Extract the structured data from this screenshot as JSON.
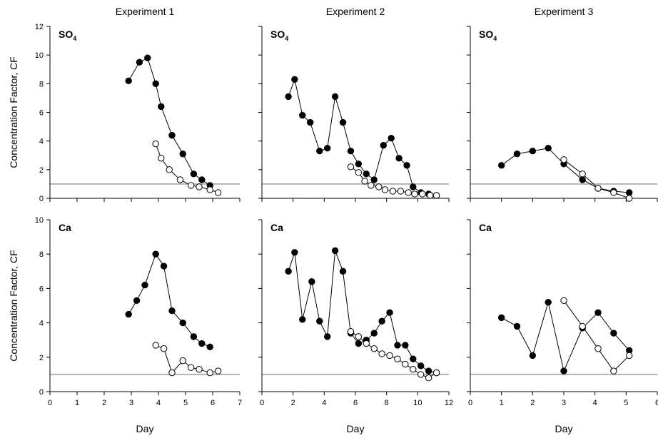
{
  "chart_data": [
    {
      "type": "line",
      "row": 0,
      "col": 0,
      "column_title": "Experiment 1",
      "label": "SO",
      "label_subscript": "4",
      "xlabel": "",
      "ylabel": "Concentration Factor, CF",
      "xlim": [
        0,
        7
      ],
      "ylim": [
        0,
        12
      ],
      "xticks": [
        0,
        1,
        2,
        3,
        4,
        5,
        6,
        7
      ],
      "yticks": [
        0,
        2,
        4,
        6,
        8,
        10,
        12
      ],
      "reference_line_y": 1,
      "series": [
        {
          "marker": "filled",
          "x": [
            2.9,
            3.3,
            3.6,
            3.9,
            4.1,
            4.5,
            4.9,
            5.3,
            5.6,
            5.9
          ],
          "y": [
            8.2,
            9.5,
            9.8,
            8.0,
            6.4,
            4.4,
            3.1,
            1.7,
            1.3,
            0.9
          ]
        },
        {
          "marker": "open",
          "x": [
            3.9,
            4.1,
            4.4,
            4.8,
            5.2,
            5.5,
            5.9,
            6.2
          ],
          "y": [
            3.8,
            2.8,
            2.0,
            1.3,
            0.9,
            0.8,
            0.6,
            0.4
          ]
        }
      ]
    },
    {
      "type": "line",
      "row": 0,
      "col": 1,
      "column_title": "Experiment 2",
      "label": "SO",
      "label_subscript": "4",
      "xlabel": "",
      "ylabel": "",
      "xlim": [
        0,
        12
      ],
      "ylim": [
        0,
        12
      ],
      "xticks": [
        0,
        2,
        4,
        6,
        8,
        10,
        12
      ],
      "yticks": [
        0,
        2,
        4,
        6,
        8,
        10,
        12
      ],
      "reference_line_y": 1,
      "series": [
        {
          "marker": "filled",
          "x": [
            1.7,
            2.1,
            2.6,
            3.1,
            3.7,
            4.2,
            4.7,
            5.2,
            5.7,
            6.2,
            6.7,
            7.2,
            7.8,
            8.3,
            8.8,
            9.3,
            9.7,
            10.2,
            10.7,
            11.2
          ],
          "y": [
            7.1,
            8.3,
            5.8,
            5.3,
            3.3,
            3.5,
            7.1,
            5.3,
            3.3,
            2.4,
            1.7,
            1.3,
            3.7,
            4.2,
            2.8,
            2.3,
            0.8,
            0.4,
            0.3,
            0.2
          ]
        },
        {
          "marker": "open",
          "x": [
            5.7,
            6.2,
            6.6,
            7.0,
            7.5,
            7.9,
            8.4,
            8.9,
            9.4,
            9.8,
            10.3,
            10.8,
            11.2
          ],
          "y": [
            2.2,
            1.8,
            1.2,
            0.9,
            0.8,
            0.6,
            0.5,
            0.5,
            0.4,
            0.3,
            0.3,
            0.2,
            0.2
          ]
        }
      ]
    },
    {
      "type": "line",
      "row": 0,
      "col": 2,
      "column_title": "Experiment 3",
      "label": "SO",
      "label_subscript": "4",
      "xlabel": "",
      "ylabel": "",
      "xlim": [
        0,
        6
      ],
      "ylim": [
        0,
        12
      ],
      "xticks": [
        0,
        1,
        2,
        3,
        4,
        5,
        6
      ],
      "yticks": [
        0,
        2,
        4,
        6,
        8,
        10,
        12
      ],
      "reference_line_y": 1,
      "series": [
        {
          "marker": "filled",
          "x": [
            1.0,
            1.5,
            2.0,
            2.5,
            3.0,
            3.6,
            4.1,
            4.6,
            5.1
          ],
          "y": [
            2.3,
            3.1,
            3.3,
            3.5,
            2.4,
            1.3,
            0.7,
            0.5,
            0.4
          ]
        },
        {
          "marker": "open",
          "x": [
            3.0,
            3.6,
            4.1,
            4.6,
            5.1
          ],
          "y": [
            2.7,
            1.7,
            0.7,
            0.4,
            0.0
          ]
        }
      ]
    },
    {
      "type": "line",
      "row": 1,
      "col": 0,
      "column_title": "",
      "label": "Ca",
      "label_subscript": "",
      "xlabel": "Day",
      "ylabel": "Concentration Factor, CF",
      "xlim": [
        0,
        7
      ],
      "ylim": [
        0,
        10
      ],
      "xticks": [
        0,
        1,
        2,
        3,
        4,
        5,
        6,
        7
      ],
      "yticks": [
        0,
        2,
        4,
        6,
        8,
        10
      ],
      "reference_line_y": 1,
      "series": [
        {
          "marker": "filled",
          "x": [
            2.9,
            3.2,
            3.5,
            3.9,
            4.2,
            4.5,
            4.9,
            5.3,
            5.6,
            5.9
          ],
          "y": [
            4.5,
            5.3,
            6.2,
            8.0,
            7.3,
            4.7,
            4.0,
            3.2,
            2.8,
            2.6
          ]
        },
        {
          "marker": "open",
          "x": [
            3.9,
            4.2,
            4.5,
            4.9,
            5.2,
            5.5,
            5.9,
            6.2
          ],
          "y": [
            2.7,
            2.5,
            1.1,
            1.8,
            1.4,
            1.3,
            1.1,
            1.2
          ]
        }
      ]
    },
    {
      "type": "line",
      "row": 1,
      "col": 1,
      "column_title": "",
      "label": "Ca",
      "label_subscript": "",
      "xlabel": "Day",
      "ylabel": "",
      "xlim": [
        0,
        12
      ],
      "ylim": [
        0,
        10
      ],
      "xticks": [
        0,
        2,
        4,
        6,
        8,
        10,
        12
      ],
      "yticks": [
        0,
        2,
        4,
        6,
        8,
        10
      ],
      "reference_line_y": 1,
      "series": [
        {
          "marker": "filled",
          "x": [
            1.7,
            2.1,
            2.6,
            3.2,
            3.7,
            4.2,
            4.7,
            5.2,
            5.7,
            6.2,
            6.7,
            7.2,
            7.7,
            8.2,
            8.7,
            9.2,
            9.7,
            10.2,
            10.7,
            11.2
          ],
          "y": [
            7.0,
            8.1,
            4.2,
            6.4,
            4.1,
            3.2,
            8.2,
            7.0,
            3.4,
            2.8,
            3.0,
            3.4,
            4.1,
            4.6,
            2.7,
            2.7,
            1.9,
            1.5,
            1.2,
            1.1
          ]
        },
        {
          "marker": "open",
          "x": [
            5.7,
            6.2,
            6.7,
            7.2,
            7.7,
            8.2,
            8.7,
            9.2,
            9.7,
            10.2,
            10.7,
            11.2
          ],
          "y": [
            3.5,
            3.2,
            2.8,
            2.5,
            2.2,
            2.1,
            1.9,
            1.6,
            1.3,
            1.0,
            0.8,
            1.1
          ]
        }
      ]
    },
    {
      "type": "line",
      "row": 1,
      "col": 2,
      "column_title": "",
      "label": "Ca",
      "label_subscript": "",
      "xlabel": "Day",
      "ylabel": "",
      "xlim": [
        0,
        6
      ],
      "ylim": [
        0,
        10
      ],
      "xticks": [
        0,
        1,
        2,
        3,
        4,
        5,
        6
      ],
      "yticks": [
        0,
        2,
        4,
        6,
        8,
        10
      ],
      "reference_line_y": 1,
      "series": [
        {
          "marker": "filled",
          "x": [
            1.0,
            1.5,
            2.0,
            2.5,
            3.0,
            3.6,
            4.1,
            4.6,
            5.1
          ],
          "y": [
            4.3,
            3.8,
            2.1,
            5.2,
            1.2,
            3.7,
            4.6,
            3.4,
            2.4
          ]
        },
        {
          "marker": "open",
          "x": [
            3.0,
            3.6,
            4.1,
            4.6,
            5.1
          ],
          "y": [
            5.3,
            3.8,
            2.5,
            1.2,
            2.1
          ]
        }
      ]
    }
  ]
}
